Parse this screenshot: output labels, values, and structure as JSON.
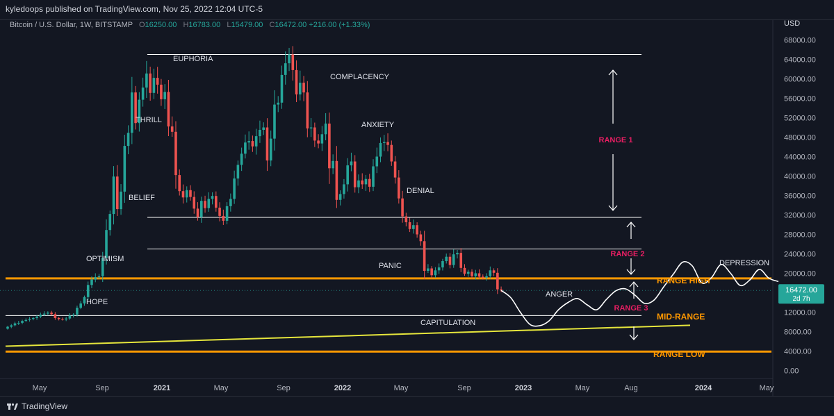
{
  "header": {
    "published": "kyledoops published on TradingView.com, Nov 25, 2022 12:04 UTC-5"
  },
  "legend": {
    "symbol": "Bitcoin / U.S. Dollar, 1W, BITSTAMP",
    "o_label": "O",
    "o_value": "16250.00",
    "h_label": "H",
    "h_value": "16783.00",
    "l_label": "L",
    "l_value": "15479.00",
    "c_label": "C",
    "c_value": "16472.00",
    "change": "+216.00 (+1.33%)"
  },
  "footer": {
    "brand": "TradingView"
  },
  "colors": {
    "background": "#131722",
    "up": "#26a69a",
    "down": "#ef5350",
    "orange": "#ff9800",
    "yellow": "#e6e63c",
    "pink": "#e91e63",
    "white": "#ffffff"
  },
  "chart_data": {
    "type": "candlestick",
    "currency_label": "USD",
    "y_ticks": [
      "68000.00",
      "64000.00",
      "60000.00",
      "56000.00",
      "52000.00",
      "48000.00",
      "44000.00",
      "40000.00",
      "36000.00",
      "32000.00",
      "28000.00",
      "24000.00",
      "20000.00",
      "16000.00",
      "12000.00",
      "8000.00",
      "4000.00",
      "0.00"
    ],
    "x_ticks": [
      "May",
      "Sep",
      "2021",
      "May",
      "Sep",
      "2022",
      "May",
      "Sep",
      "2023",
      "May",
      "Aug",
      "2024",
      "May"
    ],
    "x_ticks_bold": [
      "2021",
      "2022",
      "2023",
      "2024"
    ],
    "ylim": [
      0,
      70000
    ],
    "price_tag": {
      "price": "16472.00",
      "countdown": "2d 7h",
      "value": 16472
    },
    "weekly_closes_approx": [
      9000,
      9300,
      9700,
      9800,
      10200,
      10400,
      10600,
      10800,
      11100,
      11500,
      11700,
      11900,
      11600,
      10800,
      10600,
      10500,
      10700,
      11300,
      11500,
      12900,
      13800,
      15100,
      17600,
      18700,
      19200,
      19400,
      23200,
      28900,
      32200,
      39900,
      33200,
      36800,
      46200,
      48900,
      57200,
      50900,
      55700,
      58200,
      61100,
      57100,
      60200,
      58800,
      55800,
      57300,
      50200,
      49100,
      40200,
      36900,
      35600,
      37100,
      35700,
      33300,
      31600,
      34900,
      33400,
      35300,
      35900,
      33500,
      31800,
      30800,
      33800,
      35300,
      39500,
      42300,
      44600,
      46900,
      47200,
      46100,
      48200,
      49500,
      50000,
      43200,
      47700,
      54700,
      55100,
      60800,
      63200,
      65000,
      61800,
      56800,
      59200,
      57200,
      49800,
      50000,
      47300,
      46700,
      48600,
      50800,
      41600,
      43100,
      35100,
      36300,
      38300,
      42200,
      43000,
      37700,
      39100,
      38300,
      39400,
      37800,
      42000,
      44000,
      46800,
      47000,
      46400,
      43000,
      39700,
      35400,
      31700,
      30500,
      29100,
      29900,
      28000,
      26600,
      20500,
      21000,
      19600,
      20600,
      21200,
      22500,
      23400,
      21700,
      23900,
      24200,
      21100,
      19900,
      20300,
      19400,
      20000,
      19300,
      19100,
      19400,
      20600,
      20100,
      16700,
      16472
    ],
    "projection": {
      "description": "hand-drawn projected path",
      "prices": [
        16472,
        15000,
        12000,
        9500,
        9200,
        10200,
        12500,
        14000,
        14800,
        13500,
        12500,
        14600,
        16400,
        16800,
        15500,
        13800,
        14500,
        17200,
        19800,
        22300,
        21500,
        18000,
        19100,
        21800,
        20000,
        17500,
        18600,
        20800,
        19000,
        18300
      ]
    },
    "levels": [
      {
        "name": "top",
        "price": 65000,
        "color": "#ffffff"
      },
      {
        "name": "range-1-low",
        "price": 31500,
        "color": "#ffffff"
      },
      {
        "name": "range-2",
        "price": 25000,
        "color": "#ffffff"
      },
      {
        "name": "range-high",
        "price": 18950,
        "color": "#ff9800",
        "label": "RANGE HIGH"
      },
      {
        "name": "capitulation-line",
        "price": 11300,
        "color": "#ffffff"
      },
      {
        "name": "range-low",
        "price": 3900,
        "color": "#ff9800",
        "label": "RANGE LOW"
      }
    ],
    "trendline": {
      "start_price": 5000,
      "end_price": 9300,
      "color": "#e6e63c",
      "label": "MID-RANGE"
    },
    "range_labels": [
      "RANGE 1",
      "RANGE 2",
      "RANGE 3"
    ],
    "annotations": [
      "EUPHORIA",
      "COMPLACENCY",
      "THRILL",
      "ANXIETY",
      "BELIEF",
      "DENIAL",
      "OPTIMISM",
      "PANIC",
      "HOPE",
      "ANGER",
      "CAPITULATION",
      "DEPRESSION"
    ]
  }
}
